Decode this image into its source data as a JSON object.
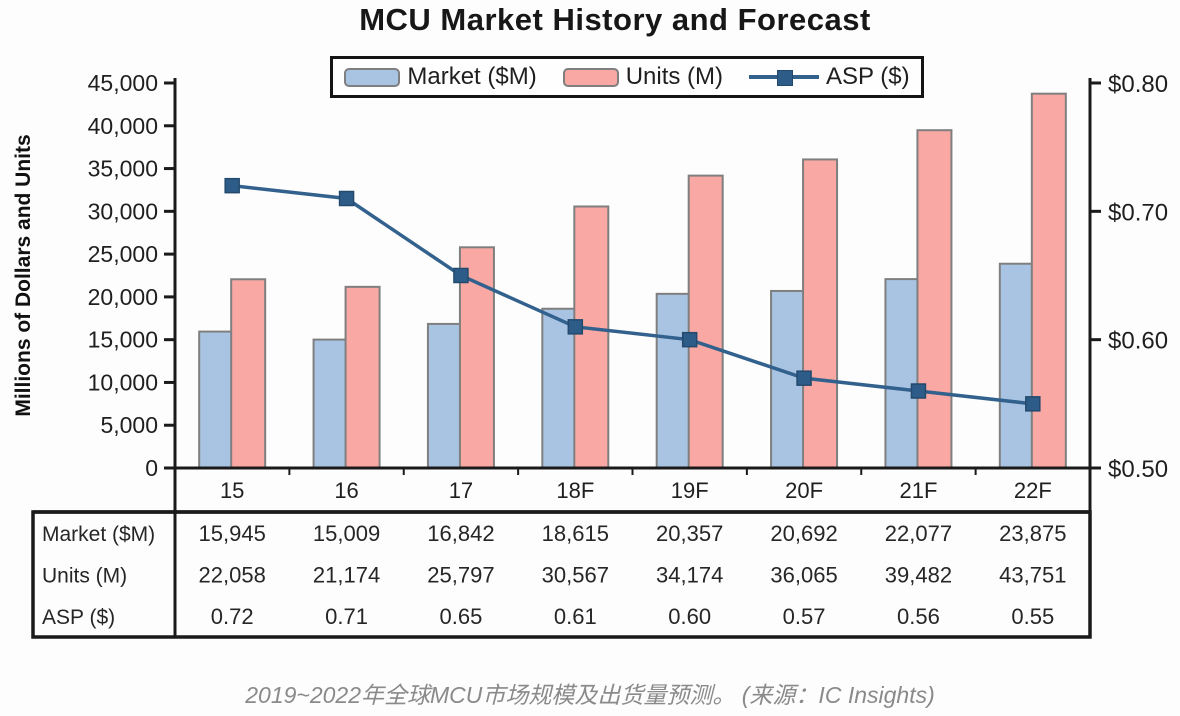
{
  "title": "MCU Market History and Forecast",
  "caption": "2019~2022年全球MCU市场规模及出货量预测。 (来源：IC Insights)",
  "legend": {
    "items": [
      {
        "label": "Market ($M)",
        "swatch": "bar"
      },
      {
        "label": "Units (M)",
        "swatch": "bar"
      },
      {
        "label": "ASP ($)",
        "swatch": "line"
      }
    ]
  },
  "colors": {
    "market_fill": "#a9c4e3",
    "units_fill": "#f9a8a4",
    "bar_border": "#7f7f7f",
    "asp_line": "#33618e",
    "asp_marker_fill": "#2e5c88",
    "asp_marker_border": "#234a6d",
    "axis": "#1a1a1a",
    "caption_text": "#8a8a8a"
  },
  "chart_data": {
    "type": "bar",
    "title": "MCU Market History and Forecast",
    "categories": [
      "15",
      "16",
      "17",
      "18F",
      "19F",
      "20F",
      "21F",
      "22F"
    ],
    "series": [
      {
        "name": "Market ($M)",
        "type": "bar",
        "axis": "left",
        "values": [
          15945,
          15009,
          16842,
          18615,
          20357,
          20692,
          22077,
          23875
        ]
      },
      {
        "name": "Units (M)",
        "type": "bar",
        "axis": "left",
        "values": [
          22058,
          21174,
          25797,
          30567,
          34174,
          36065,
          39482,
          43751
        ]
      },
      {
        "name": "ASP ($)",
        "type": "line",
        "axis": "right",
        "values": [
          0.72,
          0.71,
          0.65,
          0.61,
          0.6,
          0.57,
          0.56,
          0.55
        ]
      }
    ],
    "left_axis": {
      "label": "Millions of Dollars and Units",
      "min": 0,
      "max": 45000,
      "step": 5000,
      "tick_labels": [
        "0",
        "5,000",
        "10,000",
        "15,000",
        "20,000",
        "25,000",
        "30,000",
        "35,000",
        "40,000",
        "45,000"
      ]
    },
    "right_axis": {
      "min": 0.5,
      "max": 0.8,
      "step": 0.1,
      "tick_values": [
        0.5,
        0.6,
        0.7,
        0.8
      ],
      "tick_labels": [
        "$0.50",
        "$0.60",
        "$0.70",
        "$0.80"
      ]
    },
    "grid": false,
    "legend_position": "top"
  },
  "table": {
    "header_row": [
      "15",
      "16",
      "17",
      "18F",
      "19F",
      "20F",
      "21F",
      "22F"
    ],
    "rows": [
      {
        "label": "Market ($M)",
        "values": [
          "15,945",
          "15,009",
          "16,842",
          "18,615",
          "20,357",
          "20,692",
          "22,077",
          "23,875"
        ]
      },
      {
        "label": "Units (M)",
        "values": [
          "22,058",
          "21,174",
          "25,797",
          "30,567",
          "34,174",
          "36,065",
          "39,482",
          "43,751"
        ]
      },
      {
        "label": "ASP ($)",
        "values": [
          "0.72",
          "0.71",
          "0.65",
          "0.61",
          "0.60",
          "0.57",
          "0.56",
          "0.55"
        ]
      }
    ]
  }
}
